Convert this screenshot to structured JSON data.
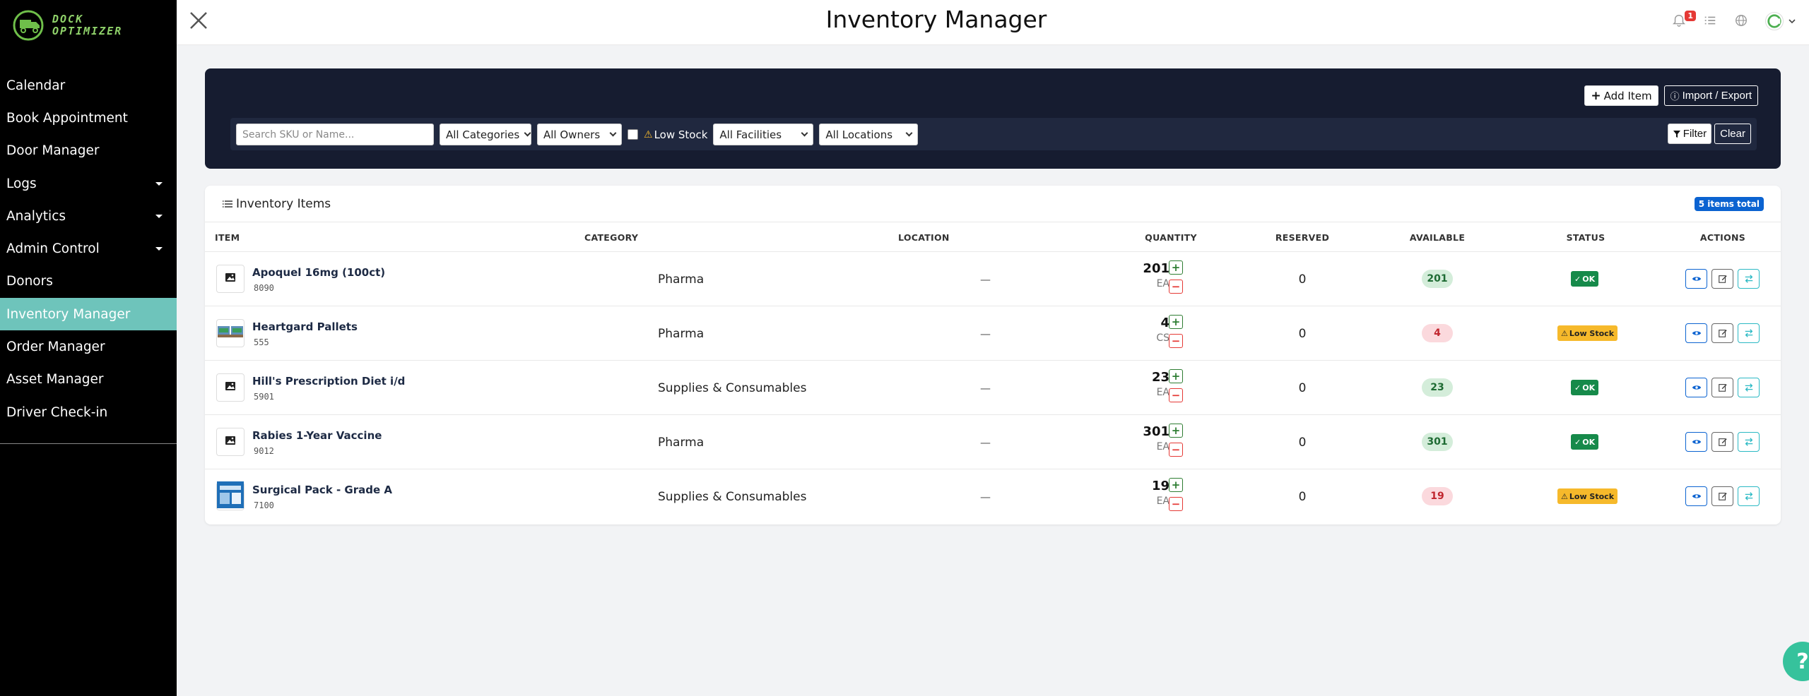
{
  "app": {
    "logo_line1": "DOCK",
    "logo_line2": "OPTIMIZER",
    "page_title": "Inventory Manager"
  },
  "sidebar": {
    "items": [
      {
        "label": "Calendar",
        "has_submenu": false,
        "active": false
      },
      {
        "label": "Book Appointment",
        "has_submenu": false,
        "active": false
      },
      {
        "label": "Door Manager",
        "has_submenu": false,
        "active": false
      },
      {
        "label": "Logs",
        "has_submenu": true,
        "active": false
      },
      {
        "label": "Analytics",
        "has_submenu": true,
        "active": false
      },
      {
        "label": "Admin Control",
        "has_submenu": true,
        "active": false
      },
      {
        "label": "Donors",
        "has_submenu": false,
        "active": false
      },
      {
        "label": "Inventory Manager",
        "has_submenu": false,
        "active": true
      },
      {
        "label": "Order Manager",
        "has_submenu": false,
        "active": false
      },
      {
        "label": "Asset Manager",
        "has_submenu": false,
        "active": false
      },
      {
        "label": "Driver Check-in",
        "has_submenu": false,
        "active": false
      }
    ]
  },
  "header": {
    "notification_count": "1"
  },
  "toolbar": {
    "add_item_label": "Add Item",
    "import_export_label": "Import / Export"
  },
  "filters": {
    "search_placeholder": "Search SKU or Name...",
    "category": "All Categories",
    "owners": "All Owners",
    "low_stock_label": "Low Stock",
    "facilities": "All Facilities",
    "locations": "All Locations",
    "filter_label": "Filter",
    "clear_label": "Clear"
  },
  "table": {
    "title": "Inventory Items",
    "total_label": "5 items total",
    "columns": [
      "ITEM",
      "CATEGORY",
      "LOCATION",
      "QUANTITY",
      "RESERVED",
      "AVAILABLE",
      "STATUS",
      "ACTIONS"
    ],
    "rows": [
      {
        "name": "Apoquel 16mg (100ct)",
        "sku": "8090",
        "category": "Pharma",
        "location": "—",
        "quantity": "201",
        "unit": "EA",
        "reserved": "0",
        "available": "201",
        "status": "OK",
        "thumb": "placeholder"
      },
      {
        "name": "Heartgard Pallets",
        "sku": "555",
        "category": "Pharma",
        "location": "—",
        "quantity": "4",
        "unit": "CS",
        "reserved": "0",
        "available": "4",
        "status": "Low Stock",
        "thumb": "pallets"
      },
      {
        "name": "Hill's Prescription Diet i/d",
        "sku": "5901",
        "category": "Supplies & Consumables",
        "location": "—",
        "quantity": "23",
        "unit": "EA",
        "reserved": "0",
        "available": "23",
        "status": "OK",
        "thumb": "placeholder"
      },
      {
        "name": "Rabies 1-Year Vaccine",
        "sku": "9012",
        "category": "Pharma",
        "location": "—",
        "quantity": "301",
        "unit": "EA",
        "reserved": "0",
        "available": "301",
        "status": "OK",
        "thumb": "placeholder"
      },
      {
        "name": "Surgical Pack - Grade A",
        "sku": "7100",
        "category": "Supplies & Consumables",
        "location": "—",
        "quantity": "19",
        "unit": "EA",
        "reserved": "0",
        "available": "19",
        "status": "Low Stock",
        "thumb": "surgical"
      }
    ]
  },
  "help": {
    "label": "?"
  },
  "colors": {
    "sidebar_bg": "#000000",
    "active_nav": "#6ec4bb",
    "filter_bg": "#161c30",
    "ok": "#168a4a",
    "low": "#f6b92b",
    "primary": "#0b63d1"
  }
}
